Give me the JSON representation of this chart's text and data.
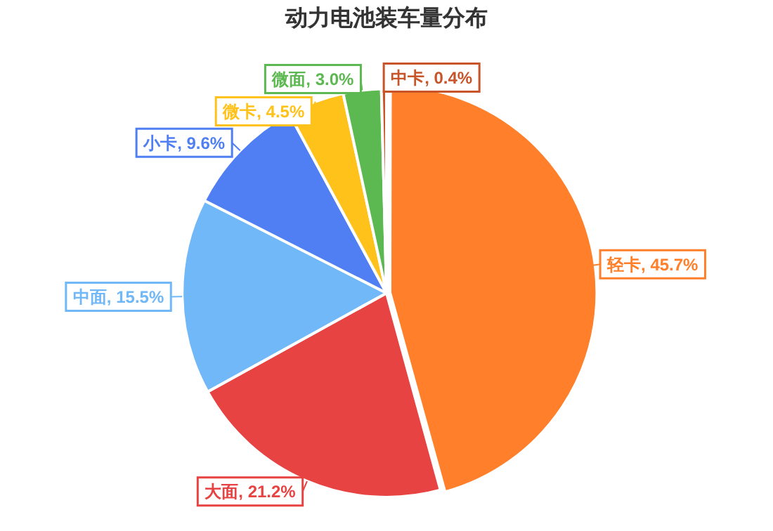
{
  "chart_data": {
    "type": "pie",
    "title": "动力电池装车量分布",
    "categories": [
      "轻卡",
      "大面",
      "中面",
      "小卡",
      "微卡",
      "微面",
      "中卡"
    ],
    "values": [
      45.7,
      21.2,
      15.5,
      9.6,
      4.5,
      3.0,
      0.4
    ],
    "value_labels": [
      "45.7%",
      "21.2%",
      "15.5%",
      "9.6%",
      "4.5%",
      "3.0%",
      "0.4%"
    ],
    "colors": [
      "#ff7f2a",
      "#e84343",
      "#70b8f8",
      "#4f7ff2",
      "#ffc21a",
      "#5cb850",
      "#c8542a"
    ],
    "legend": false
  }
}
